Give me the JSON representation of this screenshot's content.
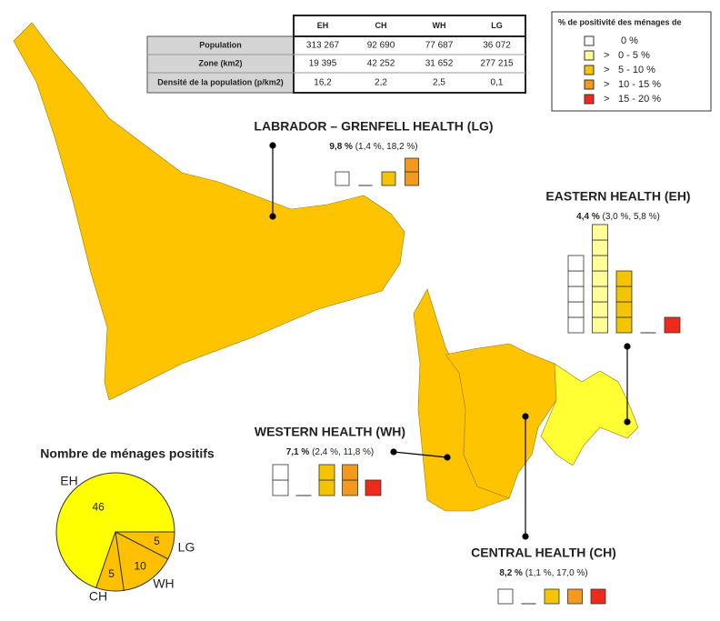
{
  "table": {
    "headers": [
      "EH",
      "CH",
      "WH",
      "LG"
    ],
    "rows": [
      [
        "Population",
        "313 267",
        "92 690",
        "77 687",
        "36 072"
      ],
      [
        "Zone (km2)",
        "19 395",
        "42 252",
        "31 652",
        "277 215"
      ],
      [
        "Densité de la population (p/km2)",
        "16,2",
        "2,2",
        "2,5",
        "0,1"
      ]
    ]
  },
  "legend": {
    "title": "% de positivité des ménages de",
    "items": [
      {
        "label": "0 %",
        "color": "#ffffff"
      },
      {
        "symbol": ">",
        "label": "0 - 5 %",
        "color": "#ffff99"
      },
      {
        "symbol": ">",
        "label": "5 - 10 %",
        "color": "#f5c400"
      },
      {
        "symbol": ">",
        "label": "10 - 15 %",
        "color": "#f39a1e"
      },
      {
        "symbol": ">",
        "label": "15 - 20 %",
        "color": "#ee2a1a"
      }
    ]
  },
  "regions": [
    {
      "name": "LABRADOR – GRENFELL HEALTH (LG)",
      "rate": "9,8 %",
      "interval": "(1,4 %, 18,2 %)",
      "counts": [
        1,
        0,
        1,
        2,
        null
      ]
    },
    {
      "name": "EASTERN HEALTH (EH)",
      "rate": "4,4 %",
      "interval": "(3,0 %, 5,8 %)",
      "counts": [
        5,
        7,
        4,
        0,
        1
      ]
    },
    {
      "name": "WESTERN HEALTH (WH)",
      "rate": "7,1 %",
      "interval": "(2,4 %, 11,8 %)",
      "counts": [
        2,
        0,
        2,
        2,
        1
      ]
    },
    {
      "name": "CENTRAL HEALTH (CH)",
      "rate": "8,2 %",
      "interval": "(1,1 %, 17,0 %)",
      "counts": [
        1,
        0,
        1,
        1,
        1
      ]
    }
  ],
  "chart_data": {
    "type": "pie",
    "title": "Nombre de ménages positifs",
    "categories": [
      "EH",
      "LG",
      "WH",
      "CH"
    ],
    "values": [
      46,
      5,
      10,
      5
    ],
    "colors": [
      "#ffff00",
      "#ffc000",
      "#ffc000",
      "#ffc000"
    ]
  }
}
